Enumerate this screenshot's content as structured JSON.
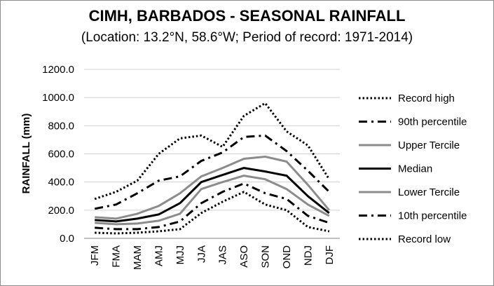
{
  "chart_data": {
    "type": "line",
    "title": "CIMH, BARBADOS - SEASONAL RAINFALL",
    "subtitle": "(Location: 13.2°N, 58.6°W; Period of record: 1971-2014)",
    "xlabel": "",
    "ylabel": "RAINFALL (mm)",
    "ylim": [
      0,
      1200
    ],
    "yticks": [
      "0.0",
      "200.0",
      "400.0",
      "600.0",
      "800.0",
      "1000.0",
      "1200.0"
    ],
    "grid": "horizontal",
    "legend_position": "right",
    "categories": [
      "JFM",
      "FMA",
      "MAM",
      "AMJ",
      "MJJ",
      "JJA",
      "JAS",
      "ASO",
      "SON",
      "OND",
      "NDJ",
      "DJF"
    ],
    "series": [
      {
        "name": "Record high",
        "color": "#000000",
        "style": "dotted",
        "values": [
          280,
          330,
          410,
          600,
          710,
          730,
          650,
          870,
          960,
          760,
          660,
          420
        ]
      },
      {
        "name": "90th percentile",
        "color": "#000000",
        "style": "dashdot",
        "values": [
          210,
          240,
          320,
          410,
          440,
          550,
          610,
          720,
          730,
          620,
          480,
          330
        ]
      },
      {
        "name": "Upper Tercile",
        "color": "#8c8c8c",
        "style": "solid",
        "values": [
          150,
          140,
          175,
          230,
          320,
          440,
          500,
          565,
          580,
          545,
          380,
          200
        ]
      },
      {
        "name": "Median",
        "color": "#000000",
        "style": "solid",
        "values": [
          130,
          120,
          140,
          170,
          250,
          400,
          450,
          500,
          475,
          445,
          300,
          180
        ]
      },
      {
        "name": "Lower Tercile",
        "color": "#8c8c8c",
        "style": "solid",
        "values": [
          110,
          100,
          105,
          125,
          175,
          350,
          400,
          445,
          420,
          350,
          240,
          160
        ]
      },
      {
        "name": "10th percentile",
        "color": "#000000",
        "style": "dashdot",
        "values": [
          75,
          65,
          65,
          80,
          120,
          250,
          330,
          390,
          320,
          280,
          160,
          110
        ]
      },
      {
        "name": "Record low",
        "color": "#000000",
        "style": "dotted",
        "values": [
          40,
          35,
          40,
          50,
          65,
          180,
          260,
          330,
          240,
          200,
          80,
          50
        ]
      }
    ]
  }
}
